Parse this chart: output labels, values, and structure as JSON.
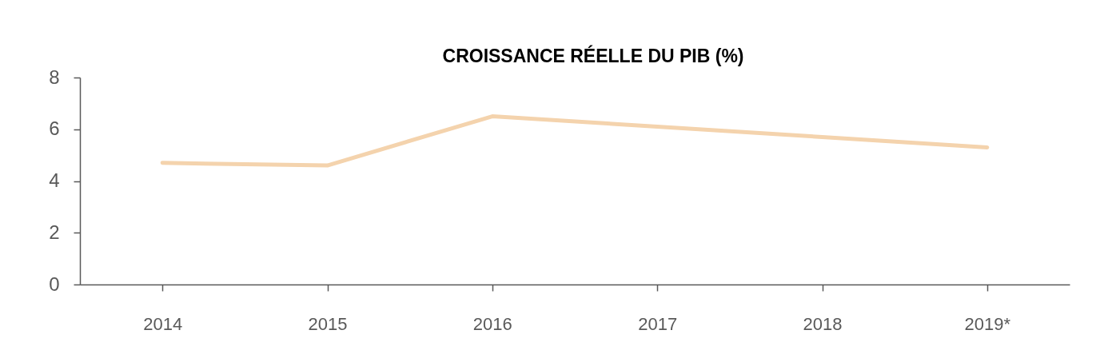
{
  "chart_data": {
    "type": "line",
    "title": "CROISSANCE RÉELLE DU PIB (%)",
    "categories": [
      "2014",
      "2015",
      "2016",
      "2017",
      "2018",
      "2019*"
    ],
    "series": [
      {
        "color": "#f4d3ad",
        "values": [
          4.7,
          4.6,
          6.5,
          6.1,
          5.7,
          5.3
        ]
      }
    ],
    "ylim": [
      0,
      8
    ],
    "yticks": [
      0,
      2,
      4,
      6,
      8
    ],
    "line_style": "solid"
  }
}
